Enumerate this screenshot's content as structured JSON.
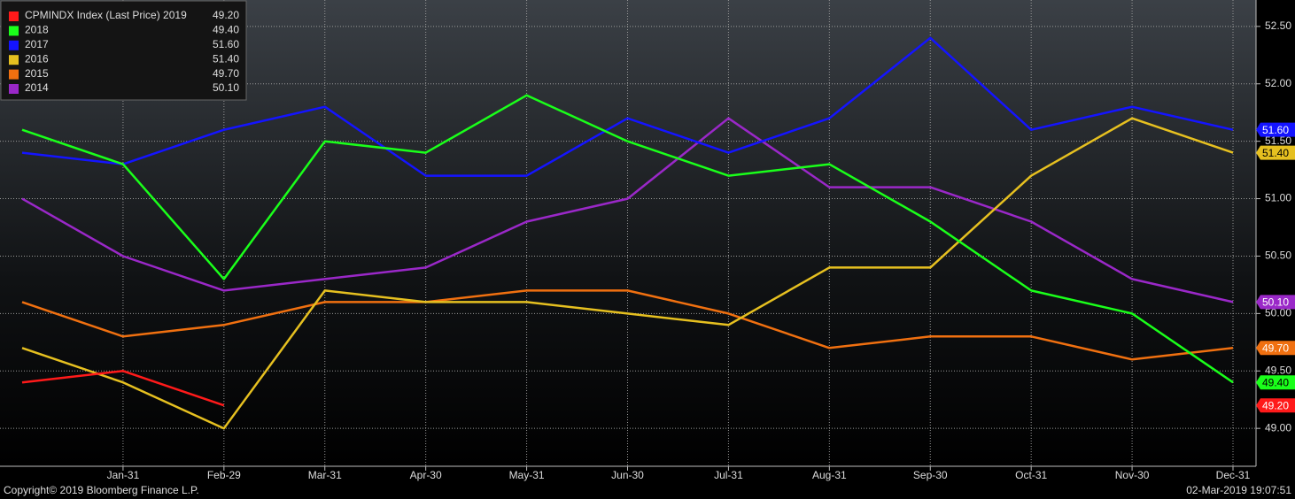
{
  "chart_data": {
    "type": "line",
    "categories": [
      null,
      "Jan-31",
      "Feb-29",
      "Mar-31",
      "Apr-30",
      "May-31",
      "Jun-30",
      "Jul-31",
      "Aug-31",
      "Sep-30",
      "Oct-31",
      "Nov-30",
      "Dec-31"
    ],
    "series": [
      {
        "name": "CPMINDX Index (Last Price) 2019",
        "color": "#ff1a1a",
        "values": [
          49.4,
          49.5,
          49.2,
          null,
          null,
          null,
          null,
          null,
          null,
          null,
          null,
          null,
          null
        ],
        "value_labels": [
          null,
          null,
          "49.20",
          null,
          null,
          null,
          null,
          null,
          null,
          null,
          null,
          null,
          null
        ]
      },
      {
        "name": "2018",
        "color": "#1aff1a",
        "values": [
          51.6,
          51.3,
          50.3,
          51.5,
          51.4,
          51.9,
          51.5,
          51.2,
          51.3,
          50.8,
          50.2,
          50.0,
          49.4
        ],
        "value_labels": [
          null,
          null,
          null,
          null,
          null,
          null,
          null,
          null,
          null,
          null,
          null,
          null,
          "49.40"
        ]
      },
      {
        "name": "2017",
        "color": "#1414ff",
        "values": [
          51.4,
          51.3,
          51.6,
          51.8,
          51.2,
          51.2,
          51.7,
          51.4,
          51.7,
          52.4,
          51.6,
          51.8,
          51.6
        ],
        "value_labels": [
          null,
          null,
          null,
          null,
          null,
          null,
          null,
          null,
          null,
          null,
          null,
          null,
          "51.60"
        ]
      },
      {
        "name": "2016",
        "color": "#e6c020",
        "values": [
          49.7,
          49.4,
          49.0,
          50.2,
          50.1,
          50.1,
          50.0,
          49.9,
          50.4,
          50.4,
          51.2,
          51.7,
          51.4
        ],
        "value_labels": [
          null,
          null,
          null,
          null,
          null,
          null,
          null,
          null,
          null,
          null,
          null,
          null,
          "51.40"
        ]
      },
      {
        "name": "2015",
        "color": "#f07010",
        "values": [
          50.1,
          49.8,
          49.9,
          50.1,
          50.1,
          50.2,
          50.2,
          50.0,
          49.7,
          49.8,
          49.8,
          49.6,
          49.7
        ],
        "value_labels": [
          null,
          null,
          null,
          null,
          null,
          null,
          null,
          null,
          null,
          null,
          null,
          null,
          "49.70"
        ]
      },
      {
        "name": "2014",
        "color": "#9a28c8",
        "values": [
          51.0,
          50.5,
          50.2,
          50.3,
          50.4,
          50.8,
          51.0,
          51.7,
          51.1,
          51.1,
          50.8,
          50.3,
          50.1
        ],
        "value_labels": [
          null,
          null,
          null,
          null,
          null,
          null,
          null,
          null,
          null,
          null,
          null,
          null,
          "50.10"
        ]
      }
    ],
    "ylim": [
      48.67,
      52.73
    ],
    "yticks": [
      {
        "value": 49,
        "label": "49.00"
      },
      {
        "value": 49.5,
        "label": "49.50"
      },
      {
        "value": 50,
        "label": "50.00"
      },
      {
        "value": 50.5,
        "label": "50.50"
      },
      {
        "value": 51,
        "label": "51.00"
      },
      {
        "value": 51.5,
        "label": "51.50"
      },
      {
        "value": 52,
        "label": "52.00"
      },
      {
        "value": 52.5,
        "label": "52.50"
      }
    ],
    "grid": true,
    "legend": "top-left",
    "copyright": "Copyright© 2019 Bloomberg Finance L.P.",
    "timestamp": "02-Mar-2019 19:07:51"
  }
}
